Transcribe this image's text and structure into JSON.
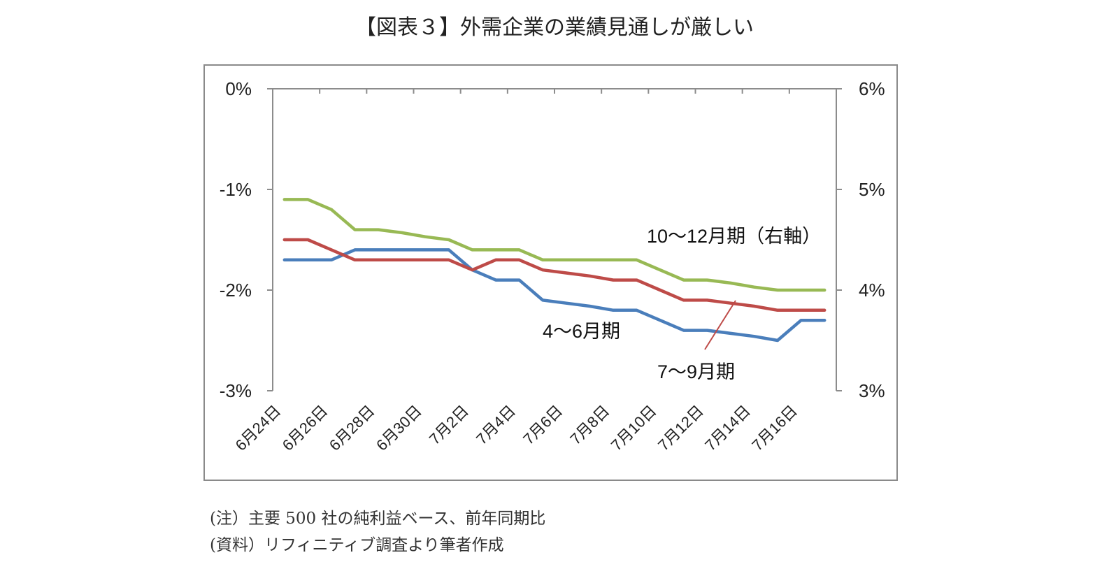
{
  "title": "【図表３】外需企業の業績見通しが厳しい",
  "notes": {
    "note": "(注）主要 500 社の純利益ベース、前年同期比",
    "source": "(資料）リフィニティブ調査より筆者作成"
  },
  "chart_data": {
    "type": "line",
    "title": "【図表３】外需企業の業績見通しが厳しい",
    "x": [
      "6月24日",
      "6月25日",
      "6月26日",
      "6月27日",
      "6月28日",
      "6月29日",
      "6月30日",
      "7月1日",
      "7月2日",
      "7月3日",
      "7月4日",
      "7月5日",
      "7月6日",
      "7月7日",
      "7月8日",
      "7月9日",
      "7月10日",
      "7月11日",
      "7月12日",
      "7月13日",
      "7月14日",
      "7月15日",
      "7月16日",
      "7月17日"
    ],
    "x_tick_labels": [
      "6月24日",
      "6月26日",
      "6月28日",
      "6月30日",
      "7月2日",
      "7月4日",
      "7月6日",
      "7月8日",
      "7月10日",
      "7月12日",
      "7月14日",
      "7月16日"
    ],
    "y_left": {
      "ylim": [
        -3,
        0
      ],
      "ticks": [
        "0%",
        "-1%",
        "-2%",
        "-3%"
      ],
      "tick_values": [
        0,
        -1,
        -2,
        -3
      ]
    },
    "y_right": {
      "ylim": [
        3,
        6
      ],
      "ticks": [
        "6%",
        "5%",
        "4%",
        "3%"
      ],
      "tick_values": [
        6,
        5,
        4,
        3
      ]
    },
    "grid": false,
    "series": [
      {
        "name": "4～6月期",
        "axis": "left",
        "color": "#4a7ebb",
        "values": [
          -1.7,
          -1.7,
          -1.7,
          -1.6,
          -1.6,
          -1.6,
          -1.6,
          -1.6,
          -1.8,
          -1.9,
          -1.9,
          -2.1,
          -2.13,
          -2.16,
          -2.2,
          -2.2,
          -2.3,
          -2.4,
          -2.4,
          -2.43,
          -2.46,
          -2.5,
          -2.3,
          -2.3
        ]
      },
      {
        "name": "7～9月期",
        "axis": "left",
        "color": "#be4b48",
        "values": [
          -1.5,
          -1.5,
          -1.6,
          -1.7,
          -1.7,
          -1.7,
          -1.7,
          -1.7,
          -1.8,
          -1.7,
          -1.7,
          -1.8,
          -1.83,
          -1.86,
          -1.9,
          -1.9,
          -2.0,
          -2.1,
          -2.1,
          -2.13,
          -2.16,
          -2.2,
          -2.2,
          -2.2
        ]
      },
      {
        "name": "10～12月期（右軸）",
        "axis": "right",
        "color": "#98b954",
        "values": [
          4.9,
          4.9,
          4.8,
          4.6,
          4.6,
          4.57,
          4.53,
          4.5,
          4.4,
          4.4,
          4.4,
          4.3,
          4.3,
          4.3,
          4.3,
          4.3,
          4.2,
          4.1,
          4.1,
          4.07,
          4.03,
          4.0,
          4.0,
          4.0
        ]
      }
    ]
  }
}
